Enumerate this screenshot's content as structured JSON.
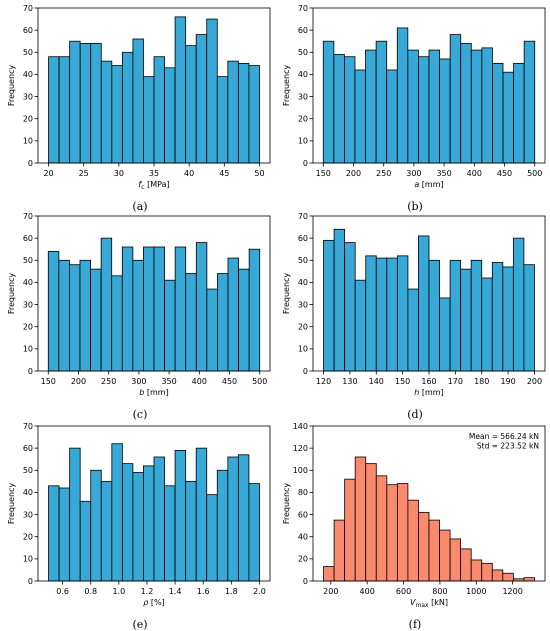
{
  "chart_data": [
    {
      "id": "a",
      "type": "bar",
      "variant": "histogram",
      "bin_edges": [
        20,
        21.5,
        23,
        24.5,
        26,
        27.5,
        29,
        30.5,
        32,
        33.5,
        35,
        36.5,
        38,
        39.5,
        41,
        42.5,
        44,
        45.5,
        47,
        48.5,
        50
      ],
      "values": [
        48,
        48,
        55,
        54,
        54,
        46,
        44,
        50,
        56,
        39,
        48,
        43,
        66,
        53,
        58,
        65,
        39,
        46,
        45,
        44
      ],
      "xlim": [
        18.5,
        51.5
      ],
      "xticks": [
        20,
        25,
        30,
        35,
        40,
        45,
        50
      ],
      "ylim": [
        0,
        70
      ],
      "yticks": [
        0,
        10,
        20,
        30,
        40,
        50,
        60,
        70
      ],
      "xlabel_main": "f",
      "xlabel_sub": "c",
      "xlabel_unit": " [MPa]",
      "ylabel": "Frequency",
      "caption": "(a)",
      "color": "#38A8D6"
    },
    {
      "id": "b",
      "type": "bar",
      "variant": "histogram",
      "bin_edges": [
        150,
        167.5,
        185,
        202.5,
        220,
        237.5,
        255,
        272.5,
        290,
        307.5,
        325,
        342.5,
        360,
        377.5,
        395,
        412.5,
        430,
        447.5,
        465,
        482.5,
        500
      ],
      "values": [
        55,
        49,
        48,
        42,
        51,
        55,
        42,
        61,
        51,
        48,
        51,
        47,
        58,
        54,
        51,
        52,
        45,
        41,
        45,
        55
      ],
      "xlim": [
        133,
        517
      ],
      "xticks": [
        150,
        200,
        250,
        300,
        350,
        400,
        450,
        500
      ],
      "ylim": [
        0,
        70
      ],
      "yticks": [
        0,
        10,
        20,
        30,
        40,
        50,
        60,
        70
      ],
      "xlabel_main": "a",
      "xlabel_sub": "",
      "xlabel_unit": " [mm]",
      "ylabel": "Frequency",
      "caption": "(b)",
      "color": "#38A8D6"
    },
    {
      "id": "c",
      "type": "bar",
      "variant": "histogram",
      "bin_edges": [
        150,
        167.5,
        185,
        202.5,
        220,
        237.5,
        255,
        272.5,
        290,
        307.5,
        325,
        342.5,
        360,
        377.5,
        395,
        412.5,
        430,
        447.5,
        465,
        482.5,
        500
      ],
      "values": [
        54,
        50,
        48,
        50,
        46,
        60,
        43,
        56,
        50,
        56,
        56,
        41,
        56,
        44,
        58,
        37,
        44,
        51,
        46,
        55
      ],
      "xlim": [
        133,
        517
      ],
      "xticks": [
        150,
        200,
        250,
        300,
        350,
        400,
        450,
        500
      ],
      "ylim": [
        0,
        70
      ],
      "yticks": [
        0,
        10,
        20,
        30,
        40,
        50,
        60,
        70
      ],
      "xlabel_main": "b",
      "xlabel_sub": "",
      "xlabel_unit": " [mm]",
      "ylabel": "Frequency",
      "caption": "(c)",
      "color": "#38A8D6"
    },
    {
      "id": "d",
      "type": "bar",
      "variant": "histogram",
      "bin_edges": [
        120,
        124,
        128,
        132,
        136,
        140,
        144,
        148,
        152,
        156,
        160,
        164,
        168,
        172,
        176,
        180,
        184,
        188,
        192,
        196,
        200
      ],
      "values": [
        59,
        64,
        58,
        41,
        52,
        51,
        51,
        52,
        37,
        61,
        50,
        33,
        50,
        46,
        50,
        42,
        49,
        47,
        60,
        48
      ],
      "xlim": [
        116,
        204
      ],
      "xticks": [
        120,
        130,
        140,
        150,
        160,
        170,
        180,
        190,
        200
      ],
      "ylim": [
        0,
        70
      ],
      "yticks": [
        0,
        10,
        20,
        30,
        40,
        50,
        60,
        70
      ],
      "xlabel_main": "h",
      "xlabel_sub": "",
      "xlabel_unit": " [mm]",
      "ylabel": "Frequency",
      "caption": "(d)",
      "color": "#38A8D6"
    },
    {
      "id": "e",
      "type": "bar",
      "variant": "histogram",
      "bin_edges": [
        0.5,
        0.575,
        0.65,
        0.725,
        0.8,
        0.875,
        0.95,
        1.025,
        1.1,
        1.175,
        1.25,
        1.325,
        1.4,
        1.475,
        1.55,
        1.625,
        1.7,
        1.775,
        1.85,
        1.925,
        2.0
      ],
      "values": [
        43,
        42,
        60,
        36,
        50,
        45,
        62,
        53,
        49,
        52,
        56,
        43,
        59,
        45,
        60,
        39,
        50,
        56,
        57,
        44
      ],
      "xlim": [
        0.425,
        2.075
      ],
      "xticks": [
        0.6,
        0.8,
        1.0,
        1.2,
        1.4,
        1.6,
        1.8,
        2.0
      ],
      "xtick_labels": [
        "0.6",
        "0.8",
        "1.0",
        "1.2",
        "1.4",
        "1.6",
        "1.8",
        "2.0"
      ],
      "ylim": [
        0,
        70
      ],
      "yticks": [
        0,
        10,
        20,
        30,
        40,
        50,
        60,
        70
      ],
      "xlabel_main": "ρ",
      "xlabel_sub": "",
      "xlabel_unit": " [%]",
      "ylabel": "Frequency",
      "caption": "(e)",
      "color": "#38A8D6"
    },
    {
      "id": "f",
      "type": "bar",
      "variant": "histogram",
      "bin_edges": [
        160,
        218,
        276,
        334,
        392,
        450,
        508,
        566,
        624,
        682,
        740,
        798,
        856,
        914,
        972,
        1030,
        1088,
        1146,
        1204,
        1262,
        1320
      ],
      "values": [
        13,
        55,
        92,
        112,
        106,
        95,
        87,
        88,
        73,
        62,
        55,
        46,
        38,
        29,
        19,
        16,
        10,
        7,
        2,
        3
      ],
      "xlim": [
        102,
        1378
      ],
      "xticks": [
        200,
        400,
        600,
        800,
        1000,
        1200
      ],
      "ylim": [
        0,
        140
      ],
      "yticks": [
        0,
        20,
        40,
        60,
        80,
        100,
        120,
        140
      ],
      "xlabel_main": "V",
      "xlabel_sub": "max",
      "xlabel_unit": " [kN]",
      "ylabel": "Frequency",
      "caption": "(f)",
      "color": "#FA8A6E",
      "annotation": [
        "Mean = 566.24 kN",
        "Std = 223.52 kN"
      ]
    }
  ]
}
